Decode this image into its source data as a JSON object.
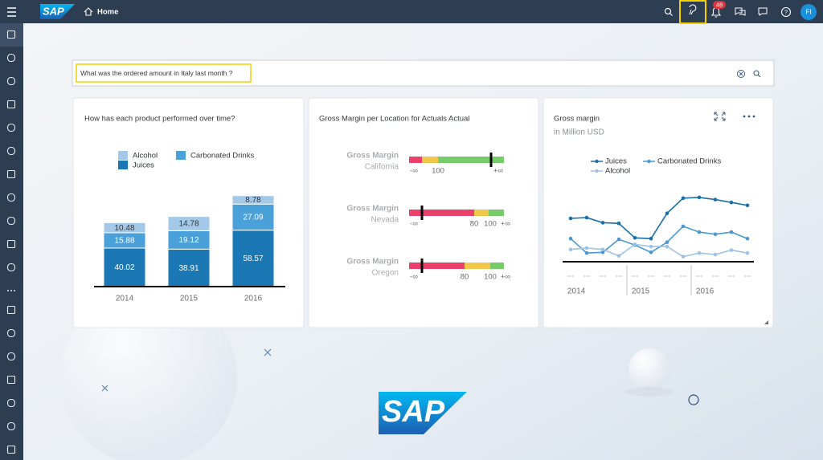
{
  "header": {
    "logo": "SAP",
    "home": "Home",
    "notifications": "48",
    "avatar": "FI"
  },
  "search": {
    "query": "What was the ordered amount in Italy last month ?"
  },
  "cards": [
    {
      "chart_data": {
        "type": "bar",
        "stacked": true,
        "title": "How has each product performed over time?",
        "categories": [
          "2014",
          "2015",
          "2016"
        ],
        "series": [
          {
            "name": "Juices",
            "color": "#1b78b4",
            "values": [
              40.02,
              38.91,
              58.57
            ]
          },
          {
            "name": "Carbonated Drinks",
            "color": "#4aa0d8",
            "values": [
              15.88,
              19.12,
              27.09
            ]
          },
          {
            "name": "Alcohol",
            "color": "#a4c8e8",
            "values": [
              10.48,
              14.78,
              8.78
            ]
          }
        ],
        "ylim": [
          0,
          100
        ]
      }
    },
    {
      "title": "Gross Margin per Location for Actuals Actual",
      "rows": [
        {
          "label": "Gross Margin",
          "location": "California",
          "ticks": [
            "-∞",
            "100",
            "+∞"
          ]
        },
        {
          "label": "Gross Margin",
          "location": "Nevada",
          "ticks": [
            "-∞",
            "80",
            "100",
            "+∞"
          ]
        },
        {
          "label": "Gross Margin",
          "location": "Oregon",
          "ticks": [
            "-∞",
            "80",
            "100",
            "+∞"
          ]
        }
      ]
    },
    {
      "chart_data": {
        "type": "line",
        "title": "Gross margin",
        "subtitle": "in Million USD",
        "categories": [
          "···",
          "···",
          "···",
          "···",
          "···",
          "···",
          "···",
          "···",
          "···",
          "···",
          "···",
          "···"
        ],
        "groups": [
          "2014",
          "2015",
          "2016"
        ],
        "series": [
          {
            "name": "Juices",
            "color": "#1b6fa8",
            "values": [
              60,
              61,
              54,
              53,
              33,
              32,
              67,
              88,
              89,
              86,
              82,
              78
            ]
          },
          {
            "name": "Carbonated Drinks",
            "color": "#4a98cf",
            "values": [
              32,
              12,
              13,
              31,
              23,
              13,
              27,
              49,
              41,
              38,
              41,
              32
            ]
          },
          {
            "name": "Alcohol",
            "color": "#9ec2e3",
            "values": [
              17,
              19,
              17,
              8,
              24,
              21,
              21,
              7,
              12,
              10,
              16,
              12
            ]
          }
        ],
        "ylim": [
          0,
          100
        ]
      }
    }
  ],
  "footer_logo": "SAP"
}
